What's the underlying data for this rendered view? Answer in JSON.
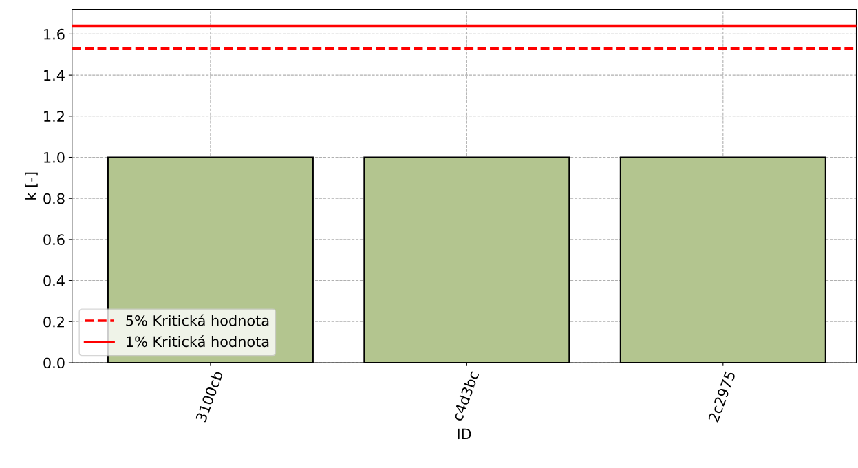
{
  "chart_data": {
    "type": "bar",
    "xlabel": "ID",
    "ylabel": "k [-]",
    "categories": [
      "3100cb",
      "c4d3bc",
      "2c2975"
    ],
    "values": [
      1.0,
      1.0,
      1.0
    ],
    "color": "#b3c58f",
    "ylim": [
      0,
      1.72
    ],
    "yticks": [
      {
        "value": 0,
        "label": "0.0"
      },
      0.2,
      0.4,
      0.6,
      0.8,
      {
        "value": 1,
        "label": "1.0"
      },
      1.2,
      1.4,
      1.6
    ],
    "ref_lines": [
      {
        "axis": "y",
        "value": 1.53,
        "label": "5% Kritická hodnota",
        "color": "#ff0000",
        "line_style": "dashed"
      },
      {
        "axis": "y",
        "value": 1.64,
        "label": "1% Kritická hodnota",
        "color": "#ff0000",
        "line_style": "solid"
      }
    ],
    "grid": true,
    "legend": "bottom left"
  }
}
